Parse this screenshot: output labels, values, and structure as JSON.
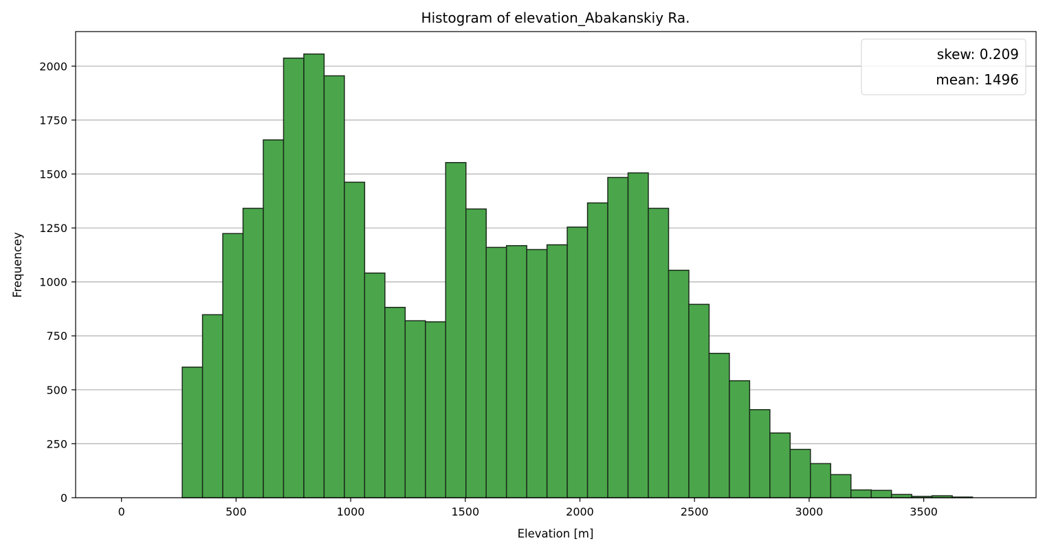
{
  "chart_data": {
    "type": "bar",
    "title": "Histogram of elevation_Abakanskiy Ra.",
    "xlabel": "Elevation [m]",
    "ylabel": "Frequencey",
    "xlim": [
      -200,
      3990
    ],
    "ylim": [
      0,
      2160
    ],
    "x_ticks": [
      0,
      500,
      1000,
      1500,
      2000,
      2500,
      3000,
      3500
    ],
    "y_ticks": [
      0,
      250,
      500,
      750,
      1000,
      1250,
      1500,
      1750,
      2000
    ],
    "grid": "y",
    "legend": {
      "position": "top-right",
      "entries": [
        "skew: 0.209",
        "mean: 1496"
      ]
    },
    "bin_start": 0,
    "bin_width": 88.4,
    "values": [
      0,
      0,
      0,
      605,
      848,
      1224,
      1341,
      1658,
      2037,
      2056,
      1955,
      1462,
      1041,
      882,
      820,
      815,
      1553,
      1338,
      1160,
      1168,
      1150,
      1172,
      1254,
      1366,
      1484,
      1505,
      1341,
      1054,
      896,
      669,
      542,
      408,
      300,
      224,
      158,
      107,
      36,
      34,
      15,
      6,
      9,
      3
    ],
    "colors": {
      "bar_fill": "#4ba64b",
      "bar_edge": "#1a2a1a",
      "grid": "#b0b0b0"
    }
  }
}
